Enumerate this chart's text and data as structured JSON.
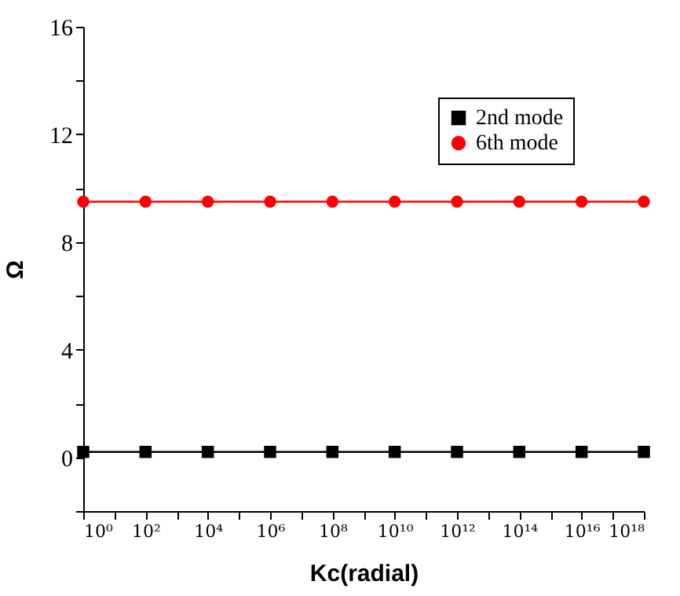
{
  "chart_data": {
    "type": "line",
    "xlabel": "Kc(radial)",
    "ylabel": "Ω",
    "log": "x",
    "x": [
      1,
      100,
      10000,
      1000000,
      100000000,
      10000000000,
      1000000000000,
      100000000000000,
      10000000000000000,
      1000000000000000000
    ],
    "series": [
      {
        "name": "2nd mode",
        "color": "#000000",
        "marker": "square",
        "values": [
          0.2,
          0.2,
          0.2,
          0.2,
          0.2,
          0.2,
          0.2,
          0.2,
          0.2,
          0.2
        ]
      },
      {
        "name": "6th mode",
        "color": "#ff0000",
        "marker": "circle",
        "values": [
          9.5,
          9.5,
          9.5,
          9.5,
          9.5,
          9.5,
          9.5,
          9.5,
          9.5,
          9.5
        ]
      }
    ],
    "xlim": [
      1,
      1000000000000000000
    ],
    "xticks": [
      {
        "value": 1,
        "label": "10⁰"
      },
      {
        "value": 10,
        "label": null
      },
      {
        "value": 100,
        "label": "10²"
      },
      {
        "value": 1000,
        "label": null
      },
      {
        "value": 10000,
        "label": "10⁴"
      },
      {
        "value": 100000,
        "label": null
      },
      {
        "value": 1000000,
        "label": "10⁶"
      },
      {
        "value": 10000000,
        "label": null
      },
      {
        "value": 100000000,
        "label": "10⁸"
      },
      {
        "value": 1000000000,
        "label": null
      },
      {
        "value": 10000000000,
        "label": "10¹⁰"
      },
      {
        "value": 100000000000,
        "label": null
      },
      {
        "value": 1000000000000,
        "label": "10¹²"
      },
      {
        "value": 10000000000000,
        "label": null
      },
      {
        "value": 100000000000000,
        "label": "10¹⁴"
      },
      {
        "value": 1000000000000000,
        "label": null
      },
      {
        "value": 10000000000000000,
        "label": "10¹⁶"
      },
      {
        "value": 100000000000000000,
        "label": null
      },
      {
        "value": 1000000000000000000,
        "label": "10¹⁸"
      }
    ],
    "ylim": [
      -2,
      16
    ],
    "yticks": [
      {
        "value": -2,
        "label": null
      },
      0,
      {
        "value": 2,
        "label": null
      },
      4,
      {
        "value": 6,
        "label": null
      },
      8,
      {
        "value": 10,
        "label": null
      },
      12,
      {
        "value": 14,
        "label": null
      },
      16
    ],
    "legend": "top right",
    "grid": false,
    "line_style": "solid"
  }
}
